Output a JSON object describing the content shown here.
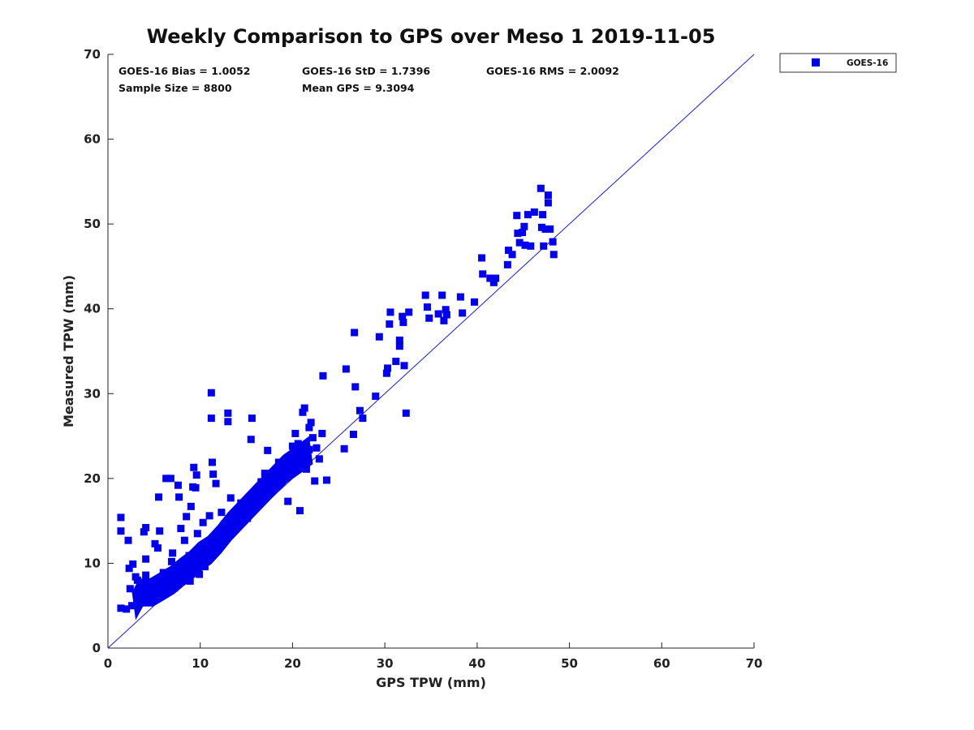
{
  "chart_data": {
    "type": "scatter",
    "title": "Weekly Comparison to GPS over Meso 1 2019-11-05",
    "xlabel": "GPS TPW (mm)",
    "ylabel": "Measured TPW (mm)",
    "xlim": [
      0,
      70
    ],
    "ylim": [
      0,
      70
    ],
    "xticks": [
      0,
      10,
      20,
      30,
      40,
      50,
      60,
      70
    ],
    "yticks": [
      0,
      10,
      20,
      30,
      40,
      50,
      60,
      70
    ],
    "grid": false,
    "legend_position": "outside-top-right",
    "annotations": {
      "bias": "GOES-16 Bias = 1.0052",
      "std": "GOES-16 StD = 1.7396",
      "rms": "GOES-16 RMS = 2.0092",
      "sample": "Sample Size = 8800",
      "mean": "Mean GPS = 9.3094"
    },
    "reference_line": {
      "type": "one-to-one",
      "from": [
        0,
        0
      ],
      "to": [
        70,
        70
      ]
    },
    "series": [
      {
        "name": "GOES-16",
        "color": "#0000ee",
        "marker": "square",
        "points": [
          [
            1.4,
            15.4
          ],
          [
            1.4,
            13.8
          ],
          [
            1.4,
            4.7
          ],
          [
            2.0,
            4.6
          ],
          [
            2.2,
            12.7
          ],
          [
            2.3,
            9.4
          ],
          [
            2.4,
            7.0
          ],
          [
            2.7,
            9.9
          ],
          [
            3.0,
            8.4
          ],
          [
            3.2,
            8.0
          ],
          [
            3.4,
            5.3
          ],
          [
            3.6,
            6.1
          ],
          [
            3.9,
            13.7
          ],
          [
            4.1,
            14.2
          ],
          [
            4.1,
            10.5
          ],
          [
            4.1,
            8.6
          ],
          [
            4.5,
            5.6
          ],
          [
            4.7,
            6.7
          ],
          [
            5.0,
            7.4
          ],
          [
            5.1,
            12.3
          ],
          [
            5.4,
            11.8
          ],
          [
            5.5,
            17.8
          ],
          [
            5.6,
            13.8
          ],
          [
            5.8,
            7.6
          ],
          [
            6.0,
            8.9
          ],
          [
            6.3,
            20.0
          ],
          [
            6.5,
            6.6
          ],
          [
            6.8,
            20.0
          ],
          [
            6.9,
            10.2
          ],
          [
            7.0,
            11.2
          ],
          [
            7.2,
            7.1
          ],
          [
            7.5,
            9.3
          ],
          [
            7.6,
            19.2
          ],
          [
            7.7,
            17.8
          ],
          [
            7.9,
            14.1
          ],
          [
            8.1,
            8.2
          ],
          [
            8.3,
            12.7
          ],
          [
            8.5,
            15.5
          ],
          [
            8.8,
            10.9
          ],
          [
            8.9,
            7.9
          ],
          [
            9.0,
            16.7
          ],
          [
            9.2,
            19.0
          ],
          [
            9.3,
            21.3
          ],
          [
            9.5,
            18.9
          ],
          [
            9.6,
            20.4
          ],
          [
            9.7,
            13.5
          ],
          [
            9.9,
            8.7
          ],
          [
            10.1,
            11.8
          ],
          [
            10.3,
            14.8
          ],
          [
            10.5,
            9.6
          ],
          [
            10.8,
            12.1
          ],
          [
            11.0,
            15.6
          ],
          [
            11.2,
            30.1
          ],
          [
            11.2,
            27.1
          ],
          [
            11.3,
            21.9
          ],
          [
            11.4,
            20.5
          ],
          [
            11.7,
            19.4
          ],
          [
            12.0,
            13.4
          ],
          [
            12.3,
            16.0
          ],
          [
            12.6,
            14.6
          ],
          [
            13.0,
            27.7
          ],
          [
            13.0,
            26.7
          ],
          [
            13.3,
            17.7
          ],
          [
            13.6,
            15.1
          ],
          [
            14.0,
            16.0
          ],
          [
            14.4,
            17.1
          ],
          [
            14.8,
            16.4
          ],
          [
            15.1,
            15.3
          ],
          [
            15.5,
            24.6
          ],
          [
            15.6,
            27.1
          ],
          [
            15.8,
            18.1
          ],
          [
            16.2,
            17.4
          ],
          [
            16.6,
            19.6
          ],
          [
            17.0,
            20.6
          ],
          [
            17.3,
            23.3
          ],
          [
            17.6,
            18.4
          ],
          [
            18.0,
            19.7
          ],
          [
            18.5,
            21.9
          ],
          [
            19.0,
            20.6
          ],
          [
            19.5,
            17.3
          ],
          [
            20.0,
            23.8
          ],
          [
            20.3,
            25.3
          ],
          [
            20.6,
            24.1
          ],
          [
            20.8,
            16.2
          ],
          [
            21.0,
            21.9
          ],
          [
            21.1,
            27.8
          ],
          [
            21.3,
            28.3
          ],
          [
            21.5,
            21.1
          ],
          [
            21.8,
            26.0
          ],
          [
            22.0,
            26.6
          ],
          [
            22.2,
            24.8
          ],
          [
            22.4,
            19.7
          ],
          [
            22.6,
            23.6
          ],
          [
            22.9,
            22.3
          ],
          [
            23.2,
            25.3
          ],
          [
            23.3,
            32.1
          ],
          [
            23.7,
            19.8
          ],
          [
            25.6,
            23.5
          ],
          [
            25.8,
            32.9
          ],
          [
            26.6,
            25.2
          ],
          [
            26.7,
            37.2
          ],
          [
            26.8,
            30.8
          ],
          [
            27.3,
            28.0
          ],
          [
            27.6,
            27.1
          ],
          [
            29.0,
            29.7
          ],
          [
            29.4,
            36.7
          ],
          [
            30.2,
            32.4
          ],
          [
            30.3,
            33.0
          ],
          [
            30.5,
            38.2
          ],
          [
            30.6,
            39.6
          ],
          [
            31.2,
            33.8
          ],
          [
            31.6,
            36.3
          ],
          [
            31.6,
            35.6
          ],
          [
            31.9,
            39.1
          ],
          [
            32.0,
            38.4
          ],
          [
            32.1,
            33.3
          ],
          [
            32.3,
            27.7
          ],
          [
            32.6,
            39.6
          ],
          [
            34.4,
            41.6
          ],
          [
            34.6,
            40.2
          ],
          [
            34.8,
            38.9
          ],
          [
            35.8,
            39.4
          ],
          [
            36.2,
            41.6
          ],
          [
            36.4,
            38.6
          ],
          [
            36.6,
            39.9
          ],
          [
            36.7,
            39.3
          ],
          [
            38.2,
            41.4
          ],
          [
            38.4,
            39.5
          ],
          [
            39.7,
            40.8
          ],
          [
            40.5,
            46.0
          ],
          [
            40.6,
            44.1
          ],
          [
            41.4,
            43.6
          ],
          [
            41.8,
            43.1
          ],
          [
            42.0,
            43.6
          ],
          [
            43.3,
            45.2
          ],
          [
            43.4,
            46.9
          ],
          [
            43.8,
            46.4
          ],
          [
            44.3,
            51.0
          ],
          [
            44.4,
            48.9
          ],
          [
            44.6,
            47.8
          ],
          [
            44.9,
            49.0
          ],
          [
            45.1,
            49.7
          ],
          [
            45.2,
            47.5
          ],
          [
            45.5,
            51.1
          ],
          [
            45.8,
            47.4
          ],
          [
            46.2,
            51.4
          ],
          [
            46.9,
            54.2
          ],
          [
            47.0,
            49.6
          ],
          [
            47.1,
            51.1
          ],
          [
            47.2,
            47.4
          ],
          [
            47.4,
            49.4
          ],
          [
            47.7,
            53.4
          ],
          [
            47.7,
            52.5
          ],
          [
            47.9,
            49.4
          ],
          [
            48.2,
            47.9
          ],
          [
            48.3,
            46.4
          ]
        ],
        "cluster_points": [
          [
            2.6,
            5.0
          ],
          [
            3.4,
            6.6
          ],
          [
            4.5,
            6.6
          ],
          [
            5.6,
            7.3
          ],
          [
            6.8,
            8.1
          ],
          [
            7.8,
            9.0
          ],
          [
            8.8,
            9.8
          ],
          [
            9.8,
            10.9
          ],
          [
            10.8,
            11.6
          ],
          [
            11.9,
            12.9
          ],
          [
            13.0,
            14.4
          ],
          [
            14.4,
            16.0
          ],
          [
            15.8,
            17.6
          ],
          [
            17.4,
            19.4
          ],
          [
            19.0,
            21.2
          ],
          [
            20.6,
            22.4
          ],
          [
            21.8,
            23.4
          ]
        ]
      }
    ]
  }
}
